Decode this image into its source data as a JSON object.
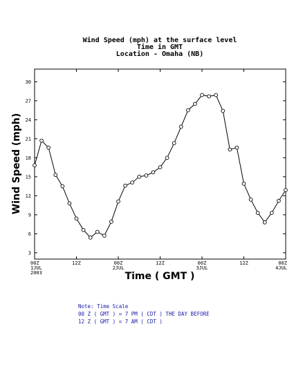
{
  "chart_data": {
    "type": "line",
    "title_lines": [
      "Wind Speed (mph) at the surface level",
      "Time in GMT",
      "Location - Omaha (NB)"
    ],
    "xlabel": "Time ( GMT )",
    "ylabel": "Wind Speed (mph)",
    "ylim": [
      2,
      32
    ],
    "yticks": [
      3,
      6,
      9,
      12,
      15,
      18,
      21,
      24,
      27,
      30
    ],
    "xlim": [
      0,
      72
    ],
    "xticks": [
      {
        "h": 0,
        "lines": [
          "00Z",
          "1JUL",
          "2003"
        ]
      },
      {
        "h": 12,
        "lines": [
          "12Z"
        ]
      },
      {
        "h": 24,
        "lines": [
          "00Z",
          "2JUL"
        ]
      },
      {
        "h": 36,
        "lines": [
          "12Z"
        ]
      },
      {
        "h": 48,
        "lines": [
          "00Z",
          "3JUL"
        ]
      },
      {
        "h": 60,
        "lines": [
          "12Z"
        ]
      },
      {
        "h": 72,
        "lines": [
          "00Z",
          "4JUL"
        ]
      }
    ],
    "x": [
      0,
      2,
      4,
      6,
      8,
      10,
      12,
      14,
      16,
      18,
      20,
      22,
      24,
      26,
      28,
      30,
      32,
      34,
      36,
      38,
      40,
      42,
      44,
      46,
      48,
      50,
      52,
      54,
      56,
      58,
      60,
      62,
      64,
      66,
      68,
      70,
      72
    ],
    "values": [
      16.8,
      20.7,
      19.6,
      15.3,
      13.5,
      10.8,
      8.4,
      6.6,
      5.4,
      6.3,
      5.7,
      7.9,
      11.1,
      13.6,
      14.1,
      15.0,
      15.2,
      15.7,
      16.5,
      18.0,
      20.3,
      22.9,
      25.5,
      26.5,
      27.9,
      27.7,
      27.9,
      25.4,
      19.3,
      19.6,
      13.9,
      11.4,
      9.3,
      7.8,
      9.3,
      11.2,
      12.9
    ],
    "marker": "open-circle",
    "grid": false
  },
  "note": {
    "lines": [
      "Note: Time Scale",
      "00 Z ( GMT ) = 7 PM ( CDT ) THE DAY BEFORE",
      "12 Z ( GMT ) = 7 AM ( CDT )"
    ],
    "color": "#1a1aa6"
  }
}
